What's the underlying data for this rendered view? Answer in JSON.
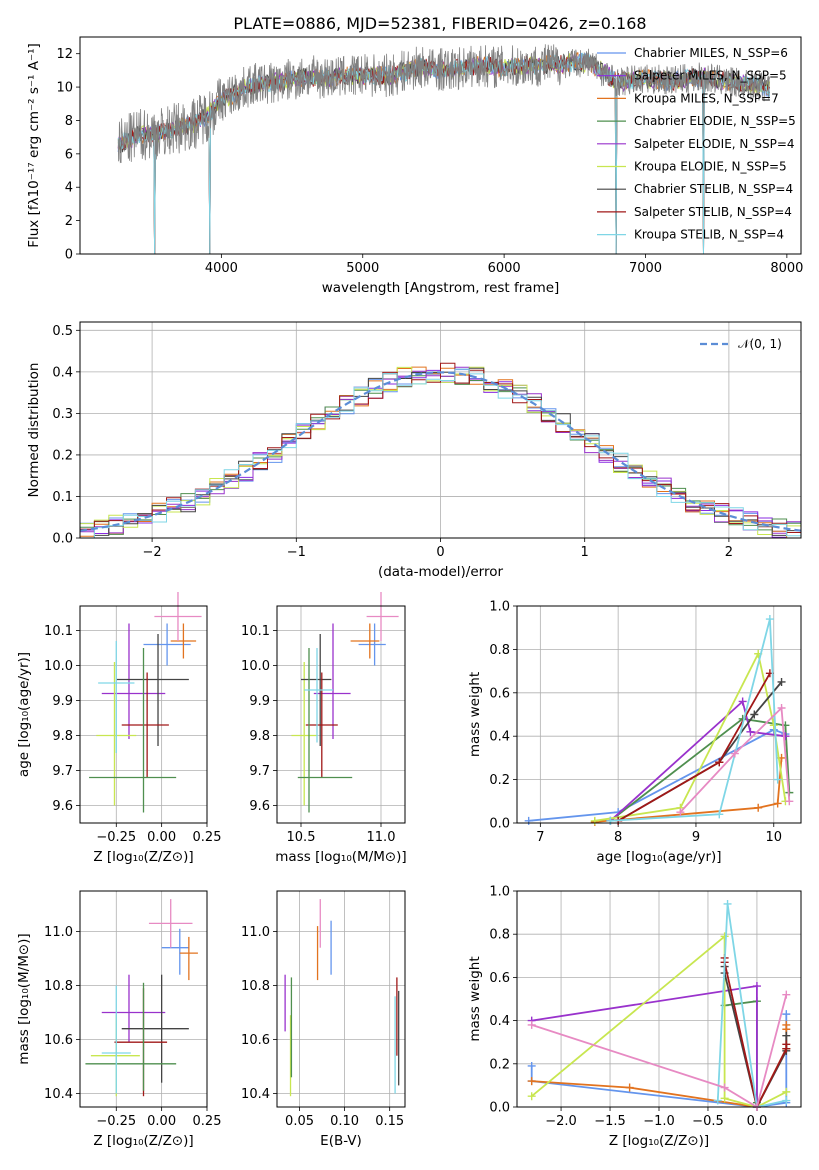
{
  "colors": {
    "chabrier_miles": "#6495ed",
    "salpeter_miles": "#8a2be2",
    "kroupa_miles": "#e2731f",
    "chabrier_elodie": "#4f8f4f",
    "salpeter_elodie": "#9932cc",
    "kroupa_elodie": "#c8e650",
    "chabrier_stelib": "#444444",
    "salpeter_stelib": "#a01818",
    "kroupa_stelib": "#7fd6e6",
    "data_spectrum": "#808080",
    "pink": "#e78ac3",
    "normal_curve": "#5b8dd6"
  },
  "chart_data": [
    {
      "type": "line",
      "title": "PLATE=0886, MJD=52381, FIBERID=0426, z=0.168",
      "xlabel": "wavelength [Angstrom, rest frame]",
      "ylabel": "Flux [fλ10⁻¹⁷ erg cm⁻² s⁻¹ A⁻¹]",
      "xlim": [
        3000,
        8100
      ],
      "ylim": [
        0,
        13
      ],
      "xticks": [
        "4000",
        "5000",
        "6000",
        "7000",
        "8000"
      ],
      "yticks": [
        "0",
        "2",
        "4",
        "6",
        "8",
        "10",
        "12"
      ],
      "legend": "top-right",
      "legend_entries": [
        "Chabrier MILES, N_SSP=6",
        "Salpeter MILES, N_SSP=5",
        "Kroupa MILES, N_SSP=7",
        "Chabrier ELODIE, N_SSP=5",
        "Salpeter ELODIE, N_SSP=4",
        "Kroupa ELODIE, N_SSP=5",
        "Chabrier STELIB, N_SSP=4",
        "Salpeter STELIB, N_SSP=4",
        "Kroupa STELIB, N_SSP=4"
      ],
      "spectrum_envelope": {
        "x": [
          3270,
          3400,
          3500,
          3600,
          3700,
          3800,
          3900,
          4000,
          4200,
          4400,
          4600,
          4800,
          5000,
          5200,
          5400,
          5600,
          5800,
          6000,
          6200,
          6400,
          6600,
          6800,
          7000,
          7200,
          7400,
          7600,
          7800,
          7880
        ],
        "y": [
          6.5,
          7.1,
          7.2,
          7.3,
          7.6,
          7.8,
          8.3,
          9.2,
          10.1,
          10.3,
          10.6,
          10.6,
          10.7,
          10.7,
          11.2,
          11.0,
          11.3,
          11.2,
          11.3,
          11.4,
          11.5,
          10.3,
          10.5,
          10.4,
          10.6,
          10.3,
          10.1,
          9.9
        ]
      },
      "absorption_dips": [
        3530,
        3920,
        6790,
        7410
      ]
    },
    {
      "type": "line",
      "xlabel": "(data-model)/error",
      "ylabel": "Normed distribution",
      "xlim": [
        -2.5,
        2.5
      ],
      "ylim": [
        0,
        0.52
      ],
      "xticks": [
        "−2",
        "−1",
        "0",
        "1",
        "2"
      ],
      "yticks": [
        "0.0",
        "0.1",
        "0.2",
        "0.3",
        "0.4",
        "0.5"
      ],
      "legend": "top-right",
      "legend_entries": [
        "𝒩(0, 1)"
      ],
      "bin_width": 0.1,
      "grid": true
    },
    {
      "type": "scatter",
      "xlabel": "Z [log₁₀(Z/Z⊙)]",
      "ylabel": "age  [log₁₀(age/yr)]",
      "xlim": [
        -0.45,
        0.25
      ],
      "ylim": [
        9.55,
        10.17
      ],
      "xticks": [
        "−0.25",
        "0.00",
        "0.25"
      ],
      "yticks": [
        "9.6",
        "9.7",
        "9.8",
        "9.9",
        "10.0",
        "10.1"
      ],
      "points": [
        {
          "series": "chabrier_miles",
          "x": 0.03,
          "xerr": [
            0.13,
            0.13
          ],
          "y": 10.06,
          "yerr": [
            0.06,
            0.06
          ]
        },
        {
          "series": "kroupa_miles",
          "x": 0.12,
          "xerr": [
            0.07,
            0.07
          ],
          "y": 10.07,
          "yerr": [
            0.05,
            0.05
          ]
        },
        {
          "series": "pink",
          "x": 0.09,
          "xerr": [
            0.13,
            0.13
          ],
          "y": 10.14,
          "yerr": [
            0.07,
            0.07
          ]
        },
        {
          "series": "salpeter_elodie",
          "x": -0.18,
          "xerr": [
            0.15,
            0.2
          ],
          "y": 9.92,
          "yerr": [
            0.13,
            0.2
          ]
        },
        {
          "series": "kroupa_elodie",
          "x": -0.26,
          "xerr": [
            0.1,
            0.12
          ],
          "y": 9.8,
          "yerr": [
            0.2,
            0.21
          ]
        },
        {
          "series": "chabrier_stelib",
          "x": -0.02,
          "xerr": [
            0.23,
            0.17
          ],
          "y": 9.96,
          "yerr": [
            0.19,
            0.13
          ]
        },
        {
          "series": "salpeter_stelib",
          "x": -0.08,
          "xerr": [
            0.14,
            0.12
          ],
          "y": 9.83,
          "yerr": [
            0.15,
            0.15
          ]
        },
        {
          "series": "chabrier_elodie",
          "x": -0.1,
          "xerr": [
            0.3,
            0.18
          ],
          "y": 9.68,
          "yerr": [
            0.1,
            0.37
          ]
        },
        {
          "series": "kroupa_stelib",
          "x": -0.25,
          "xerr": [
            0.1,
            0.1
          ],
          "y": 9.95,
          "yerr": [
            0.2,
            0.12
          ]
        }
      ]
    },
    {
      "type": "scatter",
      "xlabel": "mass [log₁₀(M/M⊙)]",
      "ylabel": "",
      "xlim": [
        10.35,
        11.15
      ],
      "ylim": [
        9.55,
        10.17
      ],
      "xticks": [
        "10.5",
        "11.0"
      ],
      "yticks": [
        "9.6",
        "9.7",
        "9.8",
        "9.9",
        "10.0",
        "10.1"
      ],
      "points": [
        {
          "series": "chabrier_miles",
          "x": 10.96,
          "xerr": [
            0.1,
            0.07
          ],
          "y": 10.06,
          "yerr": [
            0.06,
            0.06
          ]
        },
        {
          "series": "kroupa_miles",
          "x": 10.93,
          "xerr": [
            0.12,
            0.06
          ],
          "y": 10.07,
          "yerr": [
            0.05,
            0.05
          ]
        },
        {
          "series": "pink",
          "x": 11.0,
          "xerr": [
            0.09,
            0.11
          ],
          "y": 10.14,
          "yerr": [
            0.07,
            0.07
          ]
        },
        {
          "series": "salpeter_elodie",
          "x": 10.7,
          "xerr": [
            0.12,
            0.11
          ],
          "y": 9.92,
          "yerr": [
            0.13,
            0.2
          ]
        },
        {
          "series": "kroupa_elodie",
          "x": 10.52,
          "xerr": [
            0.08,
            0.08
          ],
          "y": 9.8,
          "yerr": [
            0.2,
            0.21
          ]
        },
        {
          "series": "chabrier_stelib",
          "x": 10.62,
          "xerr": [
            0.12,
            0.07
          ],
          "y": 9.96,
          "yerr": [
            0.19,
            0.13
          ]
        },
        {
          "series": "salpeter_stelib",
          "x": 10.63,
          "xerr": [
            0.1,
            0.1
          ],
          "y": 9.83,
          "yerr": [
            0.15,
            0.15
          ]
        },
        {
          "series": "chabrier_elodie",
          "x": 10.55,
          "xerr": [
            0.07,
            0.27
          ],
          "y": 9.68,
          "yerr": [
            0.1,
            0.37
          ]
        },
        {
          "series": "kroupa_stelib",
          "x": 10.6,
          "xerr": [
            0.08,
            0.1
          ],
          "y": 9.93,
          "yerr": [
            0.15,
            0.12
          ]
        }
      ]
    },
    {
      "type": "line",
      "xlabel": "age  [log₁₀(age/yr)]",
      "ylabel": "mass weight",
      "xlim": [
        6.7,
        10.35
      ],
      "ylim": [
        0,
        1.0
      ],
      "xticks": [
        "7",
        "8",
        "9",
        "10"
      ],
      "yticks": [
        "0.0",
        "0.2",
        "0.4",
        "0.6",
        "0.8",
        "1.0"
      ],
      "grid": true,
      "series": [
        {
          "key": "chabrier_miles",
          "x": [
            6.85,
            8.0,
            10.0,
            10.15
          ],
          "y": [
            0.01,
            0.05,
            0.43,
            0.41
          ]
        },
        {
          "key": "kroupa_miles",
          "x": [
            7.7,
            9.8,
            10.05,
            10.1
          ],
          "y": [
            0.005,
            0.07,
            0.09,
            0.3
          ]
        },
        {
          "key": "chabrier_elodie",
          "x": [
            7.9,
            9.6,
            10.15,
            10.2
          ],
          "y": [
            0.01,
            0.48,
            0.45,
            0.14
          ]
        },
        {
          "key": "salpeter_elodie",
          "x": [
            7.9,
            9.6,
            9.7,
            10.15
          ],
          "y": [
            0.01,
            0.56,
            0.42,
            0.4
          ]
        },
        {
          "key": "kroupa_elodie",
          "x": [
            7.7,
            8.8,
            9.8,
            10.0,
            10.15
          ],
          "y": [
            0.01,
            0.07,
            0.78,
            0.45,
            0.1
          ]
        },
        {
          "key": "chabrier_stelib",
          "x": [
            8.0,
            9.3,
            9.75,
            10.1
          ],
          "y": [
            0.01,
            0.28,
            0.5,
            0.65
          ]
        },
        {
          "key": "salpeter_stelib",
          "x": [
            8.0,
            9.3,
            9.95
          ],
          "y": [
            0.01,
            0.28,
            0.69
          ]
        },
        {
          "key": "kroupa_stelib",
          "x": [
            7.9,
            9.3,
            9.95,
            10.05
          ],
          "y": [
            0.01,
            0.04,
            0.94,
            0.2
          ]
        },
        {
          "key": "pink",
          "x": [
            8.8,
            9.5,
            10.1,
            10.2
          ],
          "y": [
            0.05,
            0.32,
            0.53,
            0.1
          ]
        }
      ]
    },
    {
      "type": "scatter",
      "xlabel": "Z [log₁₀(Z/Z⊙)]",
      "ylabel": "mass [log₁₀(M/M⊙)]",
      "xlim": [
        -0.45,
        0.25
      ],
      "ylim": [
        10.35,
        11.15
      ],
      "xticks": [
        "−0.25",
        "0.00",
        "0.25"
      ],
      "yticks": [
        "10.4",
        "10.6",
        "10.8",
        "11.0"
      ],
      "points": [
        {
          "series": "chabrier_miles",
          "x": 0.1,
          "xerr": [
            0.1,
            0.05
          ],
          "y": 10.94,
          "yerr": [
            0.1,
            0.07
          ]
        },
        {
          "series": "kroupa_miles",
          "x": 0.15,
          "xerr": [
            0.05,
            0.05
          ],
          "y": 10.92,
          "yerr": [
            0.1,
            0.06
          ]
        },
        {
          "series": "pink",
          "x": 0.05,
          "xerr": [
            0.12,
            0.12
          ],
          "y": 11.03,
          "yerr": [
            0.09,
            0.09
          ]
        },
        {
          "series": "salpeter_elodie",
          "x": -0.18,
          "xerr": [
            0.15,
            0.2
          ],
          "y": 10.7,
          "yerr": [
            0.11,
            0.14
          ]
        },
        {
          "series": "kroupa_elodie",
          "x": -0.25,
          "xerr": [
            0.14,
            0.13
          ],
          "y": 10.54,
          "yerr": [
            0.15,
            0.15
          ]
        },
        {
          "series": "chabrier_stelib",
          "x": 0.0,
          "xerr": [
            0.22,
            0.15
          ],
          "y": 10.64,
          "yerr": [
            0.2,
            0.2
          ]
        },
        {
          "series": "salpeter_stelib",
          "x": -0.1,
          "xerr": [
            0.16,
            0.13
          ],
          "y": 10.59,
          "yerr": [
            0.2,
            0.2
          ]
        },
        {
          "series": "chabrier_elodie",
          "x": -0.1,
          "xerr": [
            0.32,
            0.18
          ],
          "y": 10.51,
          "yerr": [
            0.1,
            0.3
          ]
        },
        {
          "series": "kroupa_stelib",
          "x": -0.25,
          "xerr": [
            0.08,
            0.08
          ],
          "y": 10.55,
          "yerr": [
            0.15,
            0.25
          ]
        }
      ]
    },
    {
      "type": "scatter",
      "xlabel": "E(B-V)",
      "ylabel": "",
      "xlim": [
        0.025,
        0.167
      ],
      "ylim": [
        10.35,
        11.15
      ],
      "xticks": [
        "0.05",
        "0.10",
        "0.15"
      ],
      "yticks": [
        "10.4",
        "10.6",
        "10.8",
        "11.0"
      ],
      "points": [
        {
          "series": "chabrier_miles",
          "x": 0.085,
          "y": 10.94,
          "yerr": [
            0.1,
            0.1
          ]
        },
        {
          "series": "kroupa_miles",
          "x": 0.07,
          "y": 10.92,
          "yerr": [
            0.1,
            0.1
          ]
        },
        {
          "series": "pink",
          "x": 0.073,
          "y": 11.03,
          "yerr": [
            0.09,
            0.09
          ]
        },
        {
          "series": "salpeter_elodie",
          "x": 0.034,
          "y": 10.73,
          "yerr": [
            0.1,
            0.11
          ]
        },
        {
          "series": "kroupa_elodie",
          "x": 0.04,
          "y": 10.54,
          "yerr": [
            0.15,
            0.15
          ]
        },
        {
          "series": "chabrier_stelib",
          "x": 0.16,
          "y": 10.6,
          "yerr": [
            0.17,
            0.18
          ]
        },
        {
          "series": "salpeter_stelib",
          "x": 0.158,
          "y": 10.68,
          "yerr": [
            0.14,
            0.15
          ]
        },
        {
          "series": "chabrier_elodie",
          "x": 0.041,
          "y": 10.6,
          "yerr": [
            0.14,
            0.23
          ]
        },
        {
          "series": "kroupa_stelib",
          "x": 0.156,
          "y": 10.58,
          "yerr": [
            0.18,
            0.18
          ]
        }
      ]
    },
    {
      "type": "line",
      "xlabel": "Z [log₁₀(Z/Z⊙)]",
      "ylabel": "mass weight",
      "xlim": [
        -2.45,
        0.45
      ],
      "ylim": [
        0,
        1.0
      ],
      "xticks": [
        "−2.0",
        "−1.5",
        "−1.0",
        "−0.5",
        "0.0"
      ],
      "yticks": [
        "0.0",
        "0.2",
        "0.4",
        "0.6",
        "0.8",
        "1.0"
      ],
      "grid": true,
      "series": [
        {
          "key": "chabrier_miles",
          "x": [
            -2.3,
            -2.3,
            0.0,
            0.3,
            0.3
          ],
          "y": [
            0.19,
            0.12,
            0.0,
            0.02,
            0.43
          ]
        },
        {
          "key": "kroupa_miles",
          "x": [
            -2.3,
            -1.3,
            0.0,
            0.3,
            0.3,
            0.3
          ],
          "y": [
            0.12,
            0.09,
            0.0,
            0.27,
            0.36,
            0.38
          ]
        },
        {
          "key": "chabrier_elodie",
          "x": [
            -0.33,
            0.0,
            0.0
          ],
          "y": [
            0.47,
            0.49,
            0.02
          ]
        },
        {
          "key": "salpeter_elodie",
          "x": [
            -2.3,
            0.0,
            0.0
          ],
          "y": [
            0.4,
            0.56,
            0.0
          ]
        },
        {
          "key": "kroupa_elodie",
          "x": [
            -2.3,
            -0.33,
            -0.33,
            0.0,
            0.3
          ],
          "y": [
            0.05,
            0.79,
            0.04,
            0.0,
            0.07
          ]
        },
        {
          "key": "chabrier_stelib",
          "x": [
            -0.33,
            -0.33,
            0.0,
            0.3,
            0.3
          ],
          "y": [
            0.65,
            0.62,
            0.0,
            0.26,
            0.33
          ]
        },
        {
          "key": "salpeter_stelib",
          "x": [
            -0.33,
            -0.33,
            0.0,
            0.3,
            0.3
          ],
          "y": [
            0.69,
            0.67,
            0.0,
            0.27,
            0.29
          ]
        },
        {
          "key": "kroupa_stelib",
          "x": [
            -0.4,
            -0.3,
            0.0,
            0.3
          ],
          "y": [
            0.03,
            0.94,
            0.0,
            0.03
          ]
        },
        {
          "key": "pink",
          "x": [
            -2.3,
            -0.33,
            0.0,
            0.3
          ],
          "y": [
            0.38,
            0.09,
            0.0,
            0.52
          ]
        }
      ]
    }
  ]
}
